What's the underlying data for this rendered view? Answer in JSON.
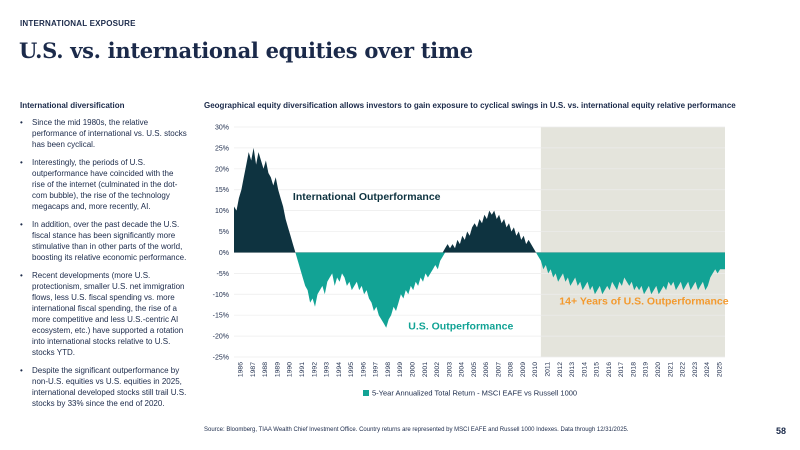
{
  "header": {
    "kicker": "INTERNATIONAL EXPOSURE",
    "title": "U.S. vs. international equities over time"
  },
  "sidebar": {
    "title": "International diversification",
    "bullets": [
      "Since the mid 1980s, the relative performance of international vs. U.S. stocks has been cyclical.",
      "Interestingly, the periods of U.S. outperformance have coincided with the rise of the internet (culminated in the dot-com bubble), the rise of the technology megacaps and, more recently, AI.",
      "In addition, over the past decade the U.S. fiscal stance has been significantly more stimulative than in other parts of the world, boosting its relative economic performance.",
      "Recent developments (more U.S. protectionism, smaller U.S. net immigration flows, less U.S. fiscal spending vs. more international fiscal spending, the rise of a more competitive and less U.S.-centric AI ecosystem, etc.) have supported a rotation into international stocks relative to U.S. stocks YTD.",
      "Despite the significant outperformance by non-U.S. equities vs U.S. equities in 2025, international developed stocks still trail U.S. stocks by 33% since the end of 2020."
    ]
  },
  "footer": {
    "source": "Source: Bloomberg, TIAA Wealth Chief Investment Office. Country returns are represented by MSCI EAFE and Russell 1000 Indexes. Data through 12/31/2025.",
    "page_number": "58"
  },
  "colors": {
    "navy": "#1b2a4a",
    "intl_fill": "#0e3340",
    "us_fill": "#12a395",
    "shade": "#e4e4dc",
    "orange": "#f39a2f"
  },
  "chart_data": {
    "type": "area",
    "title": "Geographical equity diversification allows investors to gain exposure to cyclical swings in U.S. vs. international equity relative performance",
    "legend": "5-Year Annualized Total Return - MSCI EAFE vs Russell 1000",
    "legend_position": "bottom",
    "ylim": [
      -25,
      30
    ],
    "yticks": [
      -25,
      -20,
      -15,
      -10,
      -5,
      0,
      5,
      10,
      15,
      20,
      25,
      30
    ],
    "ytick_suffix": "%",
    "years": [
      "1986",
      "1987",
      "1988",
      "1989",
      "1990",
      "1991",
      "1992",
      "1993",
      "1994",
      "1995",
      "1996",
      "1997",
      "1998",
      "1999",
      "2000",
      "2001",
      "2002",
      "2003",
      "2004",
      "2005",
      "2006",
      "2007",
      "2008",
      "2009",
      "2010",
      "2011",
      "2012",
      "2013",
      "2014",
      "2015",
      "2016",
      "2017",
      "2018",
      "2019",
      "2020",
      "2021",
      "2022",
      "2023",
      "2024",
      "2025"
    ],
    "xlim": [
      1986.0,
      2026.0
    ],
    "shaded_region": [
      2011.0,
      2026.0
    ],
    "series": [
      {
        "name": "5-Year Annualized Total Return - MSCI EAFE vs Russell 1000",
        "points": [
          [
            1986.0,
            11
          ],
          [
            1986.2,
            10
          ],
          [
            1986.4,
            13
          ],
          [
            1986.6,
            15
          ],
          [
            1986.8,
            18
          ],
          [
            1987.0,
            21
          ],
          [
            1987.2,
            24
          ],
          [
            1987.4,
            22
          ],
          [
            1987.6,
            25
          ],
          [
            1987.8,
            21
          ],
          [
            1988.0,
            24
          ],
          [
            1988.2,
            22
          ],
          [
            1988.4,
            20
          ],
          [
            1988.6,
            22
          ],
          [
            1988.8,
            19
          ],
          [
            1989.0,
            18
          ],
          [
            1989.2,
            16
          ],
          [
            1989.4,
            18
          ],
          [
            1989.6,
            15
          ],
          [
            1989.8,
            13
          ],
          [
            1990.0,
            11
          ],
          [
            1990.2,
            8
          ],
          [
            1990.4,
            6
          ],
          [
            1990.6,
            4
          ],
          [
            1990.8,
            2
          ],
          [
            1991.0,
            0
          ],
          [
            1991.2,
            -2
          ],
          [
            1991.4,
            -4
          ],
          [
            1991.6,
            -6
          ],
          [
            1991.8,
            -8
          ],
          [
            1992.0,
            -9
          ],
          [
            1992.2,
            -12
          ],
          [
            1992.4,
            -11
          ],
          [
            1992.6,
            -13
          ],
          [
            1992.8,
            -10
          ],
          [
            1993.0,
            -9
          ],
          [
            1993.2,
            -8
          ],
          [
            1993.4,
            -10
          ],
          [
            1993.6,
            -7
          ],
          [
            1993.8,
            -6
          ],
          [
            1994.0,
            -5
          ],
          [
            1994.2,
            -8
          ],
          [
            1994.4,
            -6
          ],
          [
            1994.6,
            -7
          ],
          [
            1994.8,
            -5
          ],
          [
            1995.0,
            -6
          ],
          [
            1995.2,
            -8
          ],
          [
            1995.4,
            -7
          ],
          [
            1995.6,
            -9
          ],
          [
            1995.8,
            -8
          ],
          [
            1996.0,
            -7
          ],
          [
            1996.2,
            -9
          ],
          [
            1996.4,
            -8
          ],
          [
            1996.6,
            -10
          ],
          [
            1996.8,
            -9
          ],
          [
            1997.0,
            -11
          ],
          [
            1997.2,
            -12
          ],
          [
            1997.4,
            -14
          ],
          [
            1997.6,
            -13
          ],
          [
            1997.8,
            -15
          ],
          [
            1998.0,
            -16
          ],
          [
            1998.2,
            -17
          ],
          [
            1998.4,
            -18
          ],
          [
            1998.6,
            -16
          ],
          [
            1998.8,
            -15
          ],
          [
            1999.0,
            -13
          ],
          [
            1999.2,
            -14
          ],
          [
            1999.4,
            -12
          ],
          [
            1999.6,
            -10
          ],
          [
            1999.8,
            -11
          ],
          [
            2000.0,
            -9
          ],
          [
            2000.2,
            -10
          ],
          [
            2000.4,
            -8
          ],
          [
            2000.6,
            -9
          ],
          [
            2000.8,
            -7
          ],
          [
            2001.0,
            -8
          ],
          [
            2001.2,
            -6
          ],
          [
            2001.4,
            -7
          ],
          [
            2001.6,
            -5
          ],
          [
            2001.8,
            -6
          ],
          [
            2002.0,
            -5
          ],
          [
            2002.2,
            -4
          ],
          [
            2002.4,
            -3
          ],
          [
            2002.6,
            -4
          ],
          [
            2002.8,
            -2
          ],
          [
            2003.0,
            -1
          ],
          [
            2003.2,
            1
          ],
          [
            2003.4,
            2
          ],
          [
            2003.6,
            1
          ],
          [
            2003.8,
            2
          ],
          [
            2004.0,
            1
          ],
          [
            2004.2,
            3
          ],
          [
            2004.4,
            2
          ],
          [
            2004.6,
            4
          ],
          [
            2004.8,
            3
          ],
          [
            2005.0,
            5
          ],
          [
            2005.2,
            4
          ],
          [
            2005.4,
            6
          ],
          [
            2005.6,
            7
          ],
          [
            2005.8,
            6
          ],
          [
            2006.0,
            8
          ],
          [
            2006.2,
            7
          ],
          [
            2006.4,
            9
          ],
          [
            2006.6,
            8
          ],
          [
            2006.8,
            10
          ],
          [
            2007.0,
            9
          ],
          [
            2007.2,
            10
          ],
          [
            2007.4,
            8
          ],
          [
            2007.6,
            9
          ],
          [
            2007.8,
            7
          ],
          [
            2008.0,
            8
          ],
          [
            2008.2,
            6
          ],
          [
            2008.4,
            7
          ],
          [
            2008.6,
            5
          ],
          [
            2008.8,
            6
          ],
          [
            2009.0,
            4
          ],
          [
            2009.2,
            5
          ],
          [
            2009.4,
            3
          ],
          [
            2009.6,
            4
          ],
          [
            2009.8,
            2
          ],
          [
            2010.0,
            3
          ],
          [
            2010.2,
            2
          ],
          [
            2010.4,
            1
          ],
          [
            2010.6,
            0
          ],
          [
            2010.8,
            -1
          ],
          [
            2011.0,
            -2
          ],
          [
            2011.2,
            -4
          ],
          [
            2011.4,
            -3
          ],
          [
            2011.6,
            -5
          ],
          [
            2011.8,
            -4
          ],
          [
            2012.0,
            -6
          ],
          [
            2012.2,
            -5
          ],
          [
            2012.4,
            -7
          ],
          [
            2012.6,
            -6
          ],
          [
            2012.8,
            -5
          ],
          [
            2013.0,
            -7
          ],
          [
            2013.2,
            -6
          ],
          [
            2013.4,
            -8
          ],
          [
            2013.6,
            -7
          ],
          [
            2013.8,
            -6
          ],
          [
            2014.0,
            -8
          ],
          [
            2014.2,
            -7
          ],
          [
            2014.4,
            -9
          ],
          [
            2014.6,
            -8
          ],
          [
            2014.8,
            -7
          ],
          [
            2015.0,
            -9
          ],
          [
            2015.2,
            -8
          ],
          [
            2015.4,
            -10
          ],
          [
            2015.6,
            -9
          ],
          [
            2015.8,
            -8
          ],
          [
            2016.0,
            -10
          ],
          [
            2016.2,
            -9
          ],
          [
            2016.4,
            -8
          ],
          [
            2016.6,
            -9
          ],
          [
            2016.8,
            -7
          ],
          [
            2017.0,
            -8
          ],
          [
            2017.2,
            -9
          ],
          [
            2017.4,
            -7
          ],
          [
            2017.6,
            -8
          ],
          [
            2017.8,
            -6
          ],
          [
            2018.0,
            -7
          ],
          [
            2018.2,
            -8
          ],
          [
            2018.4,
            -7
          ],
          [
            2018.6,
            -9
          ],
          [
            2018.8,
            -8
          ],
          [
            2019.0,
            -9
          ],
          [
            2019.2,
            -8
          ],
          [
            2019.4,
            -10
          ],
          [
            2019.6,
            -9
          ],
          [
            2019.8,
            -8
          ],
          [
            2020.0,
            -10
          ],
          [
            2020.2,
            -9
          ],
          [
            2020.4,
            -8
          ],
          [
            2020.6,
            -10
          ],
          [
            2020.8,
            -9
          ],
          [
            2021.0,
            -8
          ],
          [
            2021.2,
            -9
          ],
          [
            2021.4,
            -7
          ],
          [
            2021.6,
            -8
          ],
          [
            2021.8,
            -7
          ],
          [
            2022.0,
            -9
          ],
          [
            2022.2,
            -8
          ],
          [
            2022.4,
            -7
          ],
          [
            2022.6,
            -9
          ],
          [
            2022.8,
            -8
          ],
          [
            2023.0,
            -7
          ],
          [
            2023.2,
            -9
          ],
          [
            2023.4,
            -8
          ],
          [
            2023.6,
            -7
          ],
          [
            2023.8,
            -9
          ],
          [
            2024.0,
            -8
          ],
          [
            2024.2,
            -7
          ],
          [
            2024.4,
            -9
          ],
          [
            2024.6,
            -8
          ],
          [
            2024.8,
            -6
          ],
          [
            2025.0,
            -5
          ],
          [
            2025.2,
            -4
          ],
          [
            2025.4,
            -5
          ],
          [
            2025.6,
            -4
          ],
          [
            2025.8,
            -4
          ],
          [
            2026.0,
            -4
          ]
        ]
      }
    ],
    "annotations": [
      {
        "text": "International Outperformance",
        "x": 1990.8,
        "y": 12.6,
        "color": "#0e3340"
      },
      {
        "text": "U.S. Outperformance",
        "x": 2000.2,
        "y": -18.4,
        "color": "#12a395"
      },
      {
        "text": "14+ Years of U.S. Outperformance",
        "x": 2012.5,
        "y": -12.4,
        "color": "#f39a2f"
      }
    ]
  }
}
